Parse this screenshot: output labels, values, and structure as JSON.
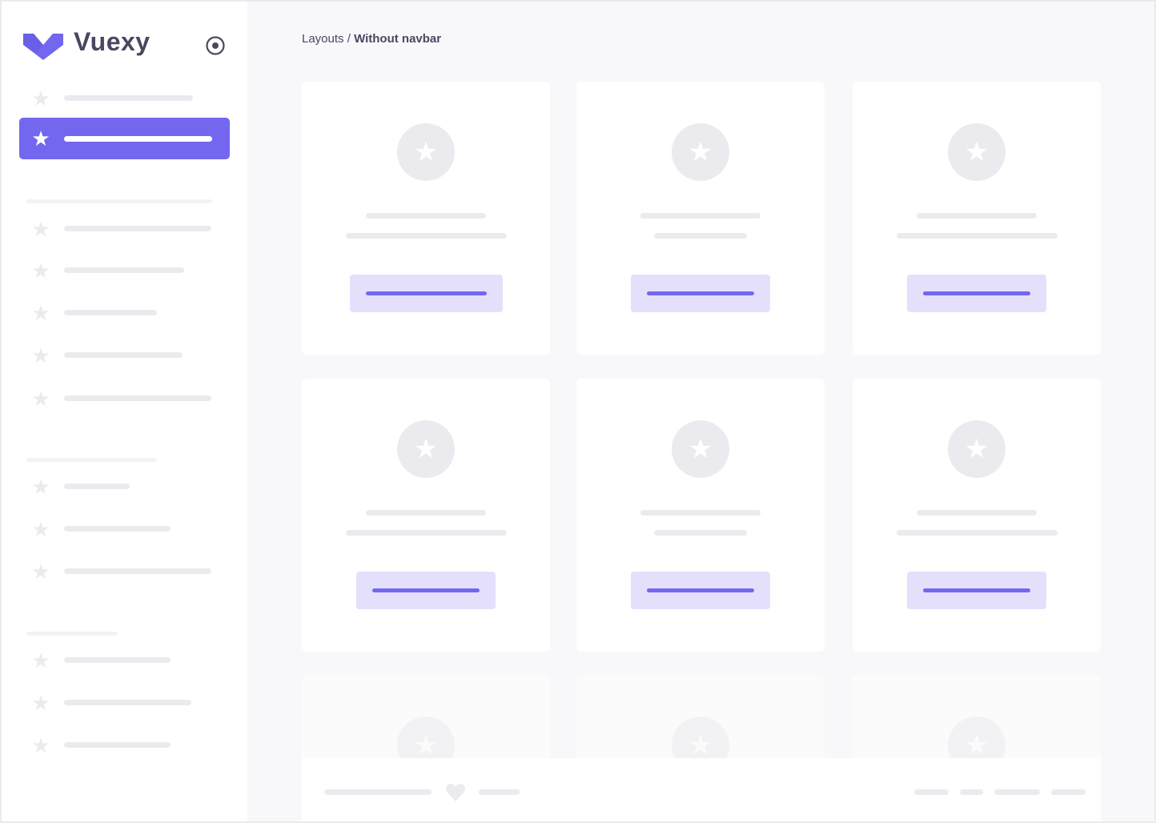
{
  "brand": {
    "name": "Vuexy",
    "logo": "vuexy-logo",
    "toggle_icon": "radio-circle-icon"
  },
  "breadcrumb": {
    "parent": "Layouts",
    "separator": " / ",
    "current": "Without navbar"
  },
  "colors": {
    "primary": "#7367f0",
    "primary_light": "#e4e0fc",
    "placeholder": "#ebebef",
    "background": "#f8f8fa"
  },
  "sidebar": {
    "active_index": 1,
    "item_icon": "star-icon"
  },
  "cards": {
    "icon": "star-icon",
    "count": 9
  },
  "footer": {
    "icon": "heart-icon"
  }
}
